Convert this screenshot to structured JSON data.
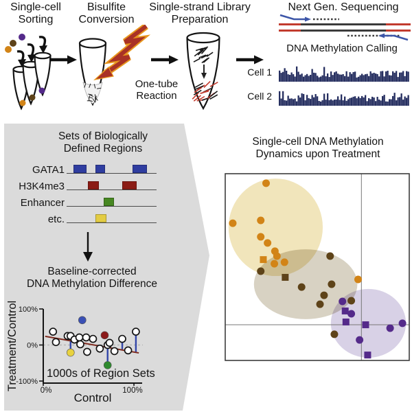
{
  "pipeline": {
    "steps": [
      {
        "label": "Single-cell\nSorting"
      },
      {
        "label": "Bisulfite\nConversion"
      },
      {
        "label": "Single-strand Library\nPreparation",
        "sublabel": "One-tube\nReaction"
      },
      {
        "label": "Next Gen. Sequencing"
      }
    ],
    "calling": {
      "title": "DNA Methylation Calling",
      "tracks": [
        {
          "label": "Cell 1"
        },
        {
          "label": "Cell 2"
        }
      ]
    }
  },
  "region_sets": {
    "title": "Sets of Biologically\nDefined Regions",
    "rows": [
      {
        "label": "GATA1",
        "color": "#2f3da0",
        "boxes": [
          [
            0.08,
            0.22
          ],
          [
            0.32,
            0.43
          ],
          [
            0.73,
            0.89
          ]
        ]
      },
      {
        "label": "H3K4me3",
        "color": "#8b1c15",
        "boxes": [
          [
            0.24,
            0.36
          ],
          [
            0.62,
            0.78
          ]
        ]
      },
      {
        "label": "Enhancer",
        "color": "#478722",
        "boxes": [
          [
            0.41,
            0.53
          ]
        ]
      },
      {
        "label": "etc.",
        "color": "#e3cc43",
        "boxes": [
          [
            0.32,
            0.44
          ]
        ]
      }
    ]
  },
  "difference_plot_title": "Baseline-corrected\nDNA Methylation Difference",
  "dynamics_plot_title": "Single-cell DNA Methylation\nDynamics upon Treatment",
  "colors": {
    "track": "#262f60",
    "panel": "#dbdbdb",
    "stem_blue": "#3246a8",
    "trend": "#7e2a1e",
    "seq_red": "#c23b2e",
    "seq_blue": "#3d56a8",
    "seq_dark": "#3b3b3b",
    "orange": "#d28417",
    "brown": "#5e4319",
    "purple": "#542a8a"
  },
  "chart_data": [
    {
      "name": "baseline_corrected_difference",
      "type": "scatter",
      "xlabel": "Control",
      "ylabel": "Treatment/Control",
      "annotation": "1000s of Region Sets",
      "xlim": [
        0,
        1
      ],
      "ylim": [
        -1,
        1
      ],
      "xtick_labels": [
        "0%",
        "100%"
      ],
      "ytick_labels": [
        "100%",
        "0%",
        "-100%"
      ],
      "ytick_values": [
        1,
        0,
        -1
      ],
      "zero_line": true,
      "trend_line": {
        "x1": 0.02,
        "y1": 0.24,
        "x2": 0.98,
        "y2": -0.22
      },
      "stems": [
        {
          "x": 0.28,
          "y1": 0.25,
          "y2": -0.21
        },
        {
          "x": 0.66,
          "y1": 0.0,
          "y2": -0.56
        },
        {
          "x": 0.81,
          "y1": 0.17,
          "y2": -0.12
        },
        {
          "x": 0.95,
          "y1": 0.37,
          "y2": -0.19
        }
      ],
      "open_points": [
        [
          0.1,
          0.37
        ],
        [
          0.13,
          0.08
        ],
        [
          0.25,
          0.25
        ],
        [
          0.28,
          0.25
        ],
        [
          0.32,
          0.15
        ],
        [
          0.37,
          0.21
        ],
        [
          0.38,
          0.02
        ],
        [
          0.44,
          0.21
        ],
        [
          0.51,
          0.17
        ],
        [
          0.45,
          -0.19
        ],
        [
          0.58,
          -0.1
        ],
        [
          0.66,
          0.0
        ],
        [
          0.68,
          0.06
        ],
        [
          0.73,
          -0.17
        ],
        [
          0.81,
          0.17
        ],
        [
          0.87,
          -0.15
        ],
        [
          0.95,
          0.37
        ]
      ],
      "filled_points": [
        {
          "x": 0.4,
          "y": 0.69,
          "color": "#3a50b5"
        },
        {
          "x": 0.63,
          "y": 0.27,
          "color": "#8b1a1a"
        },
        {
          "x": 0.28,
          "y": -0.21,
          "color": "#e8d23f"
        },
        {
          "x": 0.66,
          "y": -0.56,
          "color": "#2f8a2f"
        }
      ]
    },
    {
      "name": "dynamics_upon_treatment",
      "type": "scatter",
      "title": "Single-cell DNA Methylation Dynamics upon Treatment",
      "vline_x": 0.74,
      "hline_y": 0.809,
      "ellipses": [
        {
          "cx": 0.274,
          "cy": 0.287,
          "rx": 0.256,
          "ry": 0.261,
          "color": "#f1e5bb"
        },
        {
          "cx": 0.437,
          "cy": 0.592,
          "rx": 0.281,
          "ry": 0.187,
          "color": "#d8d2c3"
        },
        {
          "cx": 0.778,
          "cy": 0.801,
          "rx": 0.204,
          "ry": 0.184,
          "color": "#d8d1e6"
        }
      ],
      "series": [
        {
          "name": "cells-orange",
          "color": "#d28417",
          "points": [
            [
              0.222,
              0.051,
              "c"
            ],
            [
              0.041,
              0.265,
              "c"
            ],
            [
              0.193,
              0.25,
              "c"
            ],
            [
              0.193,
              0.338,
              "c"
            ],
            [
              0.23,
              0.371,
              "c"
            ],
            [
              0.27,
              0.415,
              "c"
            ],
            [
              0.281,
              0.441,
              "c"
            ],
            [
              0.267,
              0.482,
              "c"
            ],
            [
              0.322,
              0.474,
              "c"
            ],
            [
              0.722,
              0.566,
              "c"
            ],
            [
              0.207,
              0.46,
              "s"
            ]
          ]
        },
        {
          "name": "cells-brown",
          "color": "#5e4319",
          "points": [
            [
              0.57,
              0.441,
              "c"
            ],
            [
              0.193,
              0.522,
              "c"
            ],
            [
              0.415,
              0.607,
              "c"
            ],
            [
              0.578,
              0.592,
              "c"
            ],
            [
              0.537,
              0.651,
              "c"
            ],
            [
              0.515,
              0.699,
              "c"
            ],
            [
              0.685,
              0.68,
              "c"
            ],
            [
              0.593,
              0.86,
              "c"
            ],
            [
              0.326,
              0.555,
              "s"
            ]
          ]
        },
        {
          "name": "cells-purple",
          "color": "#542a8a",
          "points": [
            [
              0.637,
              0.684,
              "c"
            ],
            [
              0.685,
              0.75,
              "c"
            ],
            [
              0.896,
              0.827,
              "c"
            ],
            [
              0.963,
              0.801,
              "c"
            ],
            [
              0.73,
              0.89,
              "c"
            ],
            [
              0.652,
              0.735,
              "s"
            ],
            [
              0.656,
              0.794,
              "s"
            ],
            [
              0.763,
              0.809,
              "s"
            ],
            [
              0.774,
              0.971,
              "s"
            ]
          ]
        }
      ]
    }
  ]
}
